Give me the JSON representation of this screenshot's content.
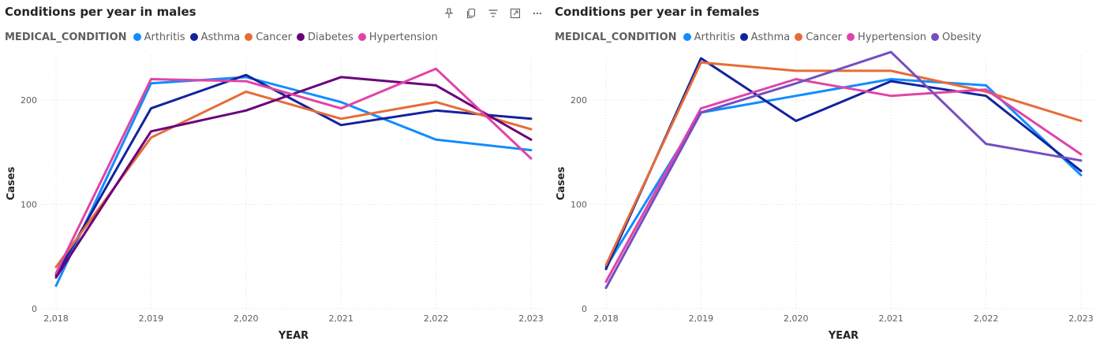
{
  "toolbar": {
    "icons": [
      "pin-icon",
      "copy-icon",
      "filter-icon",
      "focus-mode-icon",
      "more-options-icon"
    ]
  },
  "chart_data": [
    {
      "type": "line",
      "title": "Conditions per year in males",
      "legend_title": "MEDICAL_CONDITION",
      "xlabel": "YEAR",
      "ylabel": "Cases",
      "x": [
        "2,018",
        "2,019",
        "2,020",
        "2,021",
        "2,022",
        "2,023"
      ],
      "yticks": [
        0,
        100,
        200
      ],
      "ylim": [
        0,
        240
      ],
      "grid": true,
      "legend_position": "top-left",
      "series": [
        {
          "name": "Arthritis",
          "color": "#118DFF",
          "values": [
            22,
            216,
            222,
            198,
            162,
            152
          ]
        },
        {
          "name": "Asthma",
          "color": "#12239E",
          "values": [
            32,
            192,
            224,
            176,
            190,
            182
          ]
        },
        {
          "name": "Cancer",
          "color": "#E66C37",
          "values": [
            40,
            164,
            208,
            182,
            198,
            172
          ]
        },
        {
          "name": "Diabetes",
          "color": "#6B007B",
          "values": [
            30,
            170,
            190,
            222,
            214,
            162
          ]
        },
        {
          "name": "Hypertension",
          "color": "#E044A7",
          "values": [
            34,
            220,
            218,
            192,
            230,
            144
          ]
        }
      ]
    },
    {
      "type": "line",
      "title": "Conditions per year in females",
      "legend_title": "MEDICAL_CONDITION",
      "xlabel": "YEAR",
      "ylabel": "Cases",
      "x": [
        "2,018",
        "2,019",
        "2,020",
        "2,021",
        "2,022",
        "2,023"
      ],
      "yticks": [
        0,
        100,
        200
      ],
      "ylim": [
        0,
        240
      ],
      "grid": true,
      "legend_position": "top-left",
      "series": [
        {
          "name": "Arthritis",
          "color": "#118DFF",
          "values": [
            40,
            188,
            204,
            220,
            214,
            128
          ]
        },
        {
          "name": "Asthma",
          "color": "#12239E",
          "values": [
            38,
            240,
            180,
            218,
            204,
            132
          ]
        },
        {
          "name": "Cancer",
          "color": "#E66C37",
          "values": [
            42,
            236,
            228,
            228,
            208,
            180
          ]
        },
        {
          "name": "Hypertension",
          "color": "#E044A7",
          "values": [
            26,
            192,
            220,
            204,
            210,
            148
          ]
        },
        {
          "name": "Obesity",
          "color": "#744EC2",
          "values": [
            20,
            188,
            216,
            246,
            158,
            142
          ]
        }
      ]
    }
  ]
}
